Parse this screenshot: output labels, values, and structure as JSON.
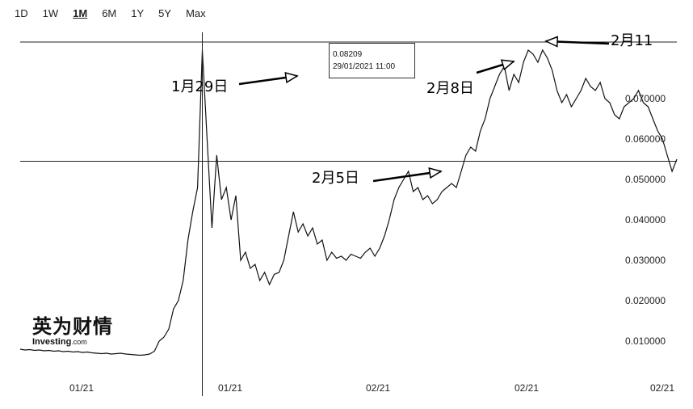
{
  "range_selector": {
    "buttons": [
      "1D",
      "1W",
      "1M",
      "6M",
      "1Y",
      "5Y",
      "Max"
    ],
    "active": "1M"
  },
  "tooltip": {
    "price": "0.08209",
    "datetime": "29/01/2021 11:00"
  },
  "logo": {
    "cn": "英为财情",
    "en": "Investing",
    "en_suffix": ".com"
  },
  "colors": {
    "line": "#111111",
    "crosshair": "#222222",
    "background": "#ffffff"
  },
  "chart_data": {
    "type": "line",
    "title": "",
    "xlabel": "",
    "ylabel": "",
    "ylim": [
      0.002,
      0.084
    ],
    "y_ticks": [
      "0.070000",
      "0.060000",
      "0.050000",
      "0.040000",
      "0.030000",
      "0.020000",
      "0.010000"
    ],
    "y_tick_values": [
      0.07,
      0.06,
      0.05,
      0.04,
      0.03,
      0.02,
      0.01
    ],
    "x_ticks": [
      "01/21",
      "01/21",
      "02/21",
      "02/21",
      "02/21"
    ],
    "series": [
      {
        "values": [
          0.008,
          0.0078,
          0.0079,
          0.0077,
          0.0078,
          0.0076,
          0.0077,
          0.0075,
          0.0076,
          0.0074,
          0.0075,
          0.0073,
          0.0074,
          0.0072,
          0.0073,
          0.0071,
          0.007,
          0.0069,
          0.007,
          0.0068,
          0.0069,
          0.007,
          0.0068,
          0.0067,
          0.0066,
          0.0065,
          0.0066,
          0.0068,
          0.0075,
          0.01,
          0.011,
          0.013,
          0.018,
          0.02,
          0.025,
          0.035,
          0.042,
          0.048,
          0.082,
          0.06,
          0.038,
          0.056,
          0.045,
          0.048,
          0.04,
          0.046,
          0.03,
          0.032,
          0.028,
          0.029,
          0.025,
          0.027,
          0.024,
          0.0265,
          0.027,
          0.03,
          0.036,
          0.042,
          0.037,
          0.039,
          0.036,
          0.038,
          0.034,
          0.035,
          0.03,
          0.032,
          0.0305,
          0.031,
          0.03,
          0.0315,
          0.031,
          0.0305,
          0.032,
          0.033,
          0.031,
          0.033,
          0.036,
          0.04,
          0.045,
          0.048,
          0.05,
          0.052,
          0.047,
          0.048,
          0.045,
          0.046,
          0.044,
          0.045,
          0.047,
          0.048,
          0.049,
          0.048,
          0.052,
          0.056,
          0.058,
          0.057,
          0.062,
          0.065,
          0.07,
          0.073,
          0.076,
          0.078,
          0.072,
          0.076,
          0.074,
          0.079,
          0.082,
          0.081,
          0.079,
          0.082,
          0.08,
          0.077,
          0.072,
          0.069,
          0.071,
          0.068,
          0.07,
          0.072,
          0.075,
          0.073,
          0.072,
          0.074,
          0.07,
          0.069,
          0.066,
          0.065,
          0.068,
          0.069,
          0.07,
          0.072,
          0.069,
          0.068,
          0.065,
          0.062,
          0.06,
          0.056,
          0.052,
          0.055
        ]
      }
    ],
    "crosshair": {
      "x_index": 38,
      "y_value": 0.0545
    },
    "annotations": [
      {
        "text": "1月29日",
        "point_index": 38
      },
      {
        "text": "2月5日",
        "point_index": 80
      },
      {
        "text": "2月8日",
        "point_index": 101
      },
      {
        "text": "2月11",
        "point_index": 109
      }
    ],
    "grid": false,
    "legend": "none"
  }
}
